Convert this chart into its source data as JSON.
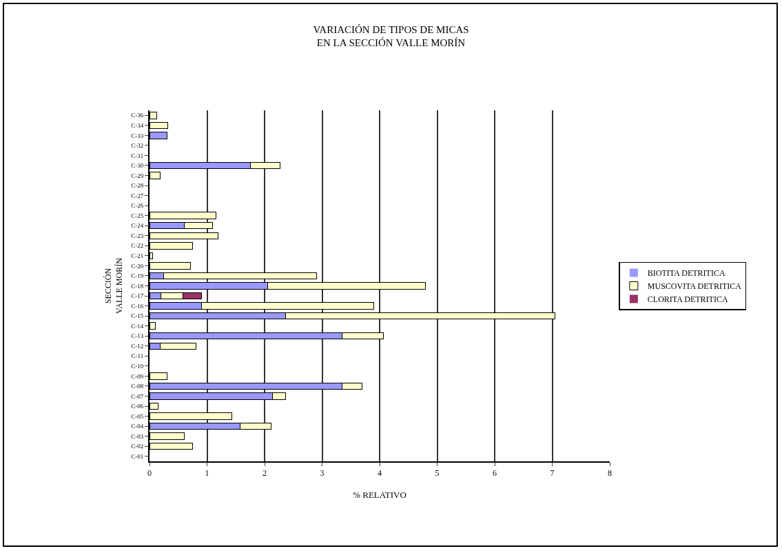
{
  "chart_data": {
    "type": "bar",
    "orientation": "horizontal",
    "stacked": true,
    "title": "VARIACIÓN DE TIPOS DE MICAS\nEN LA SECCIÓN VALLE MORÍN",
    "xlabel": "% RELATIVO",
    "ylabel": "SECCIÓN\nVALLE MORÍN",
    "categories": [
      "C-36",
      "C-34",
      "C-33",
      "C-32",
      "C-31",
      "C-30",
      "C-29",
      "C-28",
      "C-27",
      "C-26",
      "C-25",
      "C-24",
      "C-23",
      "C-22",
      "C-21",
      "C-20",
      "C-19",
      "C-18",
      "C-17",
      "C-16",
      "C-15",
      "C-14",
      "C-13",
      "C-12",
      "C-11",
      "C-10",
      "C-09",
      "C-08",
      "C-07",
      "C-06",
      "C-05",
      "C-04",
      "C-03",
      "C-02",
      "C-01"
    ],
    "series": [
      {
        "name": "BIOTITA DETRITICA",
        "color": "#9999ff",
        "values": [
          0,
          0,
          0.3,
          0,
          0,
          1.76,
          0,
          0,
          0,
          0,
          0,
          0.6,
          0,
          0,
          0,
          0,
          0.24,
          2.05,
          0.2,
          0.9,
          2.37,
          0,
          3.35,
          0.19,
          0,
          0,
          0,
          3.35,
          2.14,
          0,
          0,
          1.58,
          0,
          0,
          0
        ]
      },
      {
        "name": "MUSCOVITA DETRITICA",
        "color": "#ffffcc",
        "values": [
          0.12,
          0.32,
          0,
          0,
          0,
          0.51,
          0.18,
          0,
          0,
          0,
          1.15,
          0.5,
          1.19,
          0.75,
          0.05,
          0.71,
          2.66,
          2.75,
          0.38,
          3.0,
          4.68,
          0.1,
          0.72,
          0.62,
          0,
          0,
          0.3,
          0.35,
          0.23,
          0.15,
          1.43,
          0.53,
          0.6,
          0.75,
          0
        ]
      },
      {
        "name": "CLORITA DETRITICA",
        "color": "#993366",
        "values": [
          0,
          0,
          0,
          0,
          0,
          0,
          0,
          0,
          0,
          0,
          0,
          0,
          0,
          0,
          0,
          0,
          0,
          0,
          0.32,
          0,
          0,
          0,
          0,
          0,
          0,
          0,
          0,
          0,
          0,
          0,
          0,
          0,
          0,
          0,
          0
        ]
      }
    ],
    "xlim": [
      0,
      8
    ],
    "xticks": [
      0,
      1,
      2,
      3,
      4,
      5,
      6,
      7,
      8
    ],
    "grid": "x",
    "legend": "right"
  }
}
